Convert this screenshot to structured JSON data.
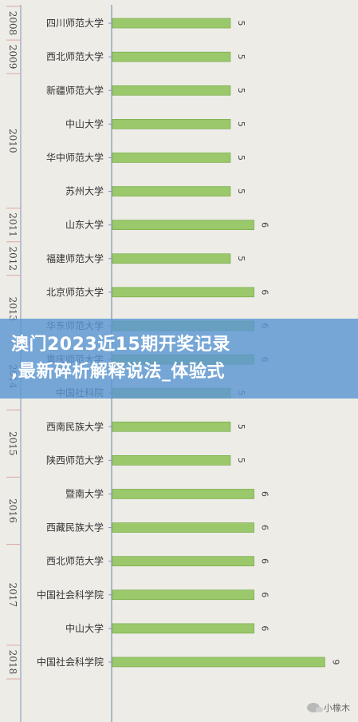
{
  "chart_data": {
    "type": "bar",
    "orientation": "horizontal",
    "xlim": [
      0,
      10
    ],
    "groups": [
      {
        "year": "2008",
        "rows": [
          {
            "category": "四川师范大学",
            "value": 5
          }
        ]
      },
      {
        "year": "2009",
        "rows": [
          {
            "category": "西北师范大学",
            "value": 5
          }
        ]
      },
      {
        "year": "2010",
        "rows": [
          {
            "category": "新疆师范大学",
            "value": 5
          },
          {
            "category": "中山大学",
            "value": 5
          },
          {
            "category": "华中师范大学",
            "value": 5
          },
          {
            "category": "苏州大学",
            "value": 5
          }
        ]
      },
      {
        "year": "2011",
        "rows": [
          {
            "category": "山东大学",
            "value": 6
          }
        ]
      },
      {
        "year": "2012",
        "rows": [
          {
            "category": "福建师范大学",
            "value": 5
          }
        ]
      },
      {
        "year": "2013",
        "rows": [
          {
            "category": "北京师范大学",
            "value": 6
          },
          {
            "category": "华东师范大学",
            "value": 6
          }
        ]
      },
      {
        "year": "2014",
        "rows": [
          {
            "category": "重庆师范大学",
            "value": 6
          },
          {
            "category": "中国社科院",
            "value": 5
          }
        ]
      },
      {
        "year": "2015",
        "rows": [
          {
            "category": "西南民族大学",
            "value": 5
          },
          {
            "category": "陕西师范大学",
            "value": 5
          }
        ]
      },
      {
        "year": "2016",
        "rows": [
          {
            "category": "暨南大学",
            "value": 6
          },
          {
            "category": "西藏民族大学",
            "value": 6
          }
        ]
      },
      {
        "year": "2017",
        "rows": [
          {
            "category": "西北师范大学",
            "value": 6
          },
          {
            "category": "中国社会科学院",
            "value": 6
          },
          {
            "category": "中山大学",
            "value": 6
          }
        ]
      },
      {
        "year": "2018",
        "rows": [
          {
            "category": "中国社会科学院",
            "value": 9
          }
        ]
      }
    ],
    "colors": {
      "bar": "#9ac86a",
      "bar_edge": "#6fa640",
      "axis": "#7e96b8",
      "separator": "#d9a8a0"
    }
  },
  "overlay": {
    "line1": "澳门2023近15期开奖记录",
    "line2": ",最新碎析解释说法_体验式"
  },
  "watermark": {
    "text": "小橡木",
    "icon": "wechat-icon"
  }
}
